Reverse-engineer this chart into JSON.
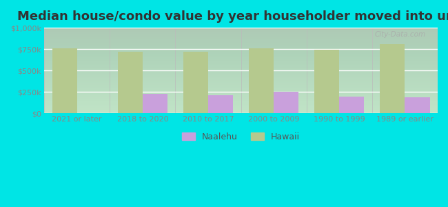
{
  "title": "Median house/condo value by year householder moved into unit",
  "categories": [
    "2021 or later",
    "2018 to 2020",
    "2010 to 2017",
    "2000 to 2009",
    "1990 to 1999",
    "1989 or earlier"
  ],
  "naalehu_values": [
    0,
    230000,
    215000,
    255000,
    195000,
    185000
  ],
  "hawaii_values": [
    760000,
    715000,
    715000,
    760000,
    745000,
    810000
  ],
  "naalehu_color": "#c9a0dc",
  "hawaii_color": "#b5c98e",
  "background_color": "#00e5e5",
  "plot_bg": "#e8f5e8",
  "ylim": [
    0,
    1000000
  ],
  "yticks": [
    0,
    250000,
    500000,
    750000,
    1000000
  ],
  "ytick_labels": [
    "$0",
    "$250k",
    "$500k",
    "$750k",
    "$1,000k"
  ],
  "bar_width": 0.38,
  "legend_naalehu": "Naalehu",
  "legend_hawaii": "Hawaii",
  "watermark": "City-Data.com",
  "title_fontsize": 13,
  "tick_fontsize": 8,
  "legend_fontsize": 9
}
